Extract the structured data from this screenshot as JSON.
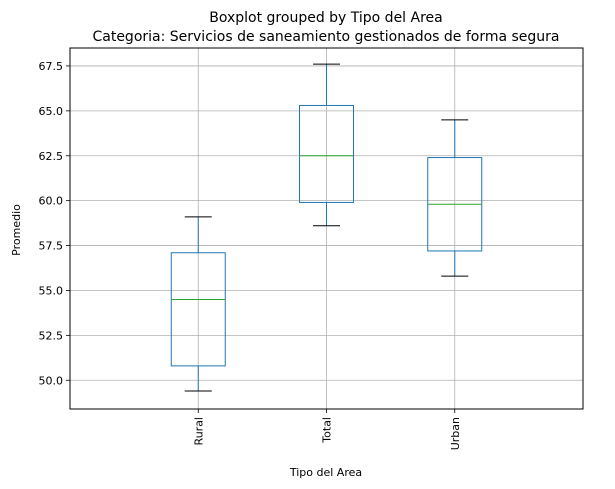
{
  "chart_data": {
    "type": "boxplot",
    "suptitle": "Boxplot grouped by Tipo del Area",
    "title": "Categoria: Servicios de saneamiento gestionados de forma segura",
    "xlabel": "Tipo del Area",
    "ylabel": "Promedio",
    "ylim": [
      48.4,
      68.5
    ],
    "yticks": [
      50.0,
      52.5,
      55.0,
      57.5,
      60.0,
      62.5,
      65.0,
      67.5
    ],
    "ytick_labels": [
      "50.0",
      "52.5",
      "55.0",
      "57.5",
      "60.0",
      "62.5",
      "65.0",
      "67.5"
    ],
    "grid": true,
    "categories": [
      "Rural",
      "Total",
      "Urban"
    ],
    "boxes": [
      {
        "category": "Rural",
        "whisker_low": 49.4,
        "q1": 50.8,
        "median": 54.5,
        "q3": 57.1,
        "whisker_high": 59.1
      },
      {
        "category": "Total",
        "whisker_low": 58.6,
        "q1": 59.9,
        "median": 62.5,
        "q3": 65.3,
        "whisker_high": 67.6
      },
      {
        "category": "Urban",
        "whisker_low": 55.8,
        "q1": 57.2,
        "median": 59.8,
        "q3": 62.4,
        "whisker_high": 64.5
      }
    ],
    "colors": {
      "box": "#1f77b4",
      "median": "#2ca02c",
      "whisker_cap": "#000000",
      "grid": "#b0b0b0"
    }
  }
}
